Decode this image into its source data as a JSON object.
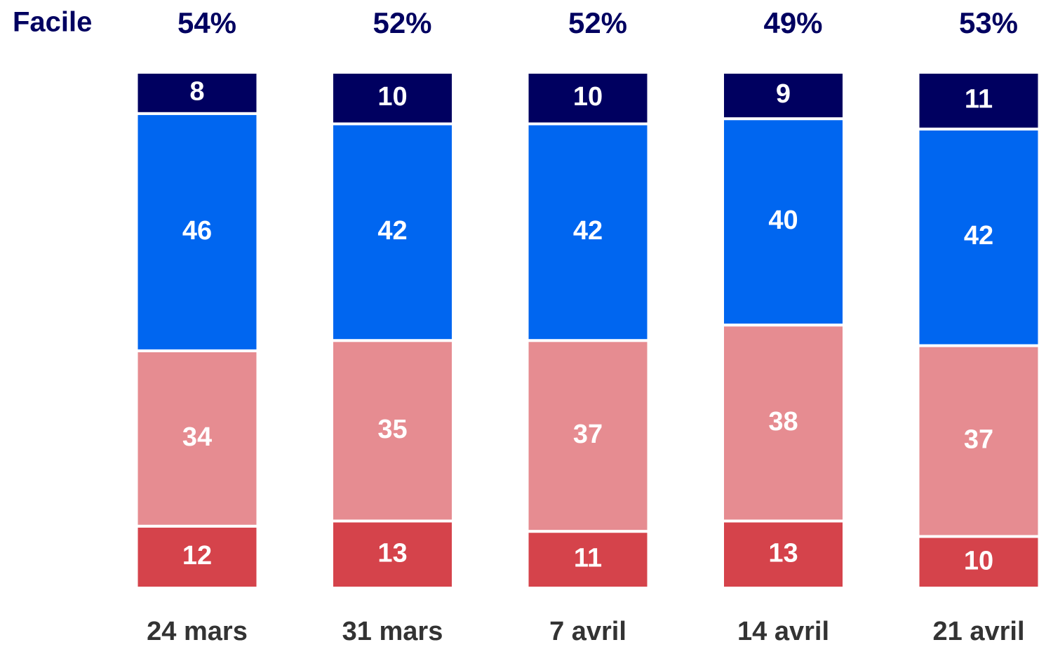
{
  "chart_data": {
    "type": "stacked-bar",
    "categories": [
      "24 mars",
      "31 mars",
      "7 avril",
      "14 avril",
      "21 avril"
    ],
    "series": [
      {
        "color": "#d5434b",
        "values": [
          12,
          13,
          11,
          13,
          10
        ]
      },
      {
        "color": "#e68c91",
        "values": [
          34,
          35,
          37,
          38,
          37
        ]
      },
      {
        "color": "#0066f0",
        "values": [
          46,
          42,
          42,
          40,
          42
        ]
      },
      {
        "color": "#000060",
        "values": [
          8,
          10,
          10,
          9,
          11
        ]
      }
    ],
    "totals": {
      "name": "Facile",
      "color": "#000060",
      "values": [
        54,
        52,
        52,
        49,
        53
      ],
      "value_labels": [
        "54%",
        "52%",
        "52%",
        "49%",
        "53%"
      ]
    },
    "ylim": [
      0,
      100
    ]
  }
}
